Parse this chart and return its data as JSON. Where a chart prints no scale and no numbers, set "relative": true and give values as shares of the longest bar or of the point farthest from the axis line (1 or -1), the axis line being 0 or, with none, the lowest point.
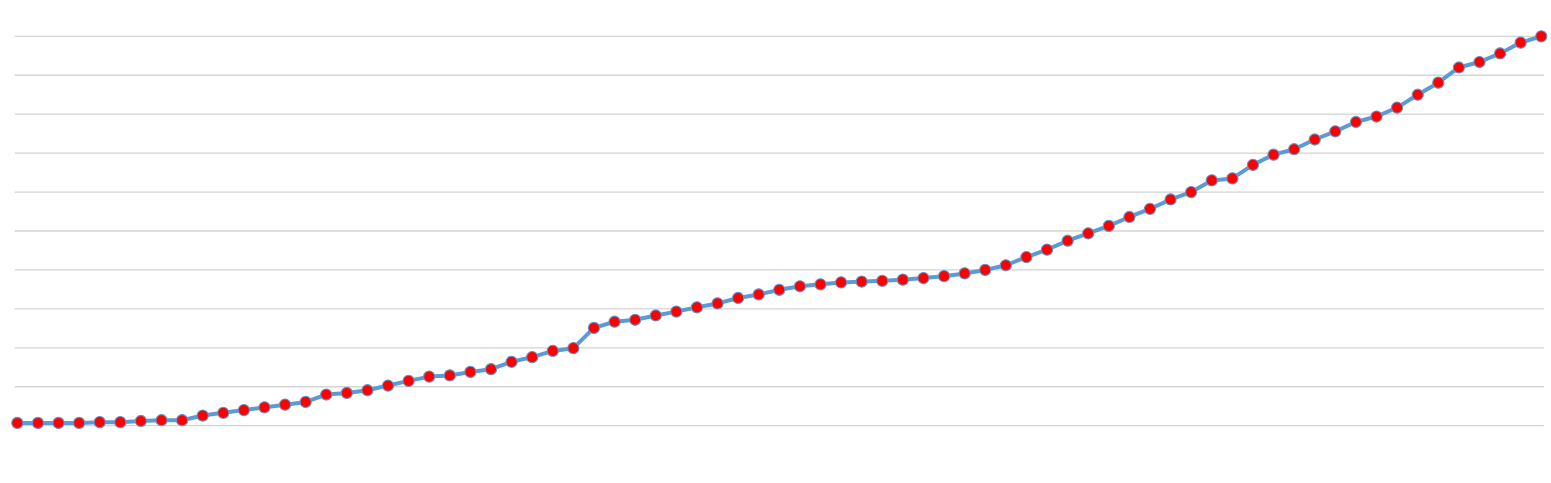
{
  "chart_data": {
    "type": "line",
    "relative": true,
    "grid": "y",
    "marker": "circle",
    "line_style": "solid",
    "categories": [
      null,
      null,
      null,
      null,
      null,
      null,
      null,
      null,
      null,
      null,
      null,
      null,
      null,
      null,
      null,
      null,
      null,
      null,
      null,
      null,
      null,
      null,
      null,
      null,
      null,
      null,
      null,
      null,
      null,
      null,
      null,
      null,
      null,
      null,
      null,
      null,
      null,
      null,
      null,
      null,
      null,
      null,
      null,
      null,
      null,
      null,
      null,
      null,
      null,
      null,
      null,
      null,
      null,
      null,
      null,
      null,
      null,
      null,
      null,
      null,
      null,
      null,
      null,
      null,
      null,
      null,
      null,
      null,
      null,
      null,
      null,
      null,
      null,
      null,
      null
    ],
    "series": [
      {
        "color": "#5b9bd5",
        "values": [
          0.007,
          0.007,
          0.007,
          0.007,
          0.009,
          0.009,
          0.012,
          0.014,
          0.014,
          0.026,
          0.033,
          0.04,
          0.047,
          0.054,
          0.061,
          0.08,
          0.084,
          0.091,
          0.103,
          0.115,
          0.126,
          0.129,
          0.138,
          0.145,
          0.164,
          0.176,
          0.192,
          0.199,
          0.251,
          0.267,
          0.272,
          0.283,
          0.293,
          0.304,
          0.314,
          0.328,
          0.337,
          0.349,
          0.358,
          0.363,
          0.368,
          0.37,
          0.372,
          0.375,
          0.379,
          0.384,
          0.391,
          0.4,
          0.412,
          0.433,
          0.452,
          0.475,
          0.494,
          0.513,
          0.536,
          0.557,
          0.581,
          0.6,
          0.63,
          0.635,
          0.67,
          0.696,
          0.71,
          0.735,
          0.756,
          0.78,
          0.794,
          0.817,
          0.85,
          0.881,
          0.92,
          0.934,
          0.956,
          0.984,
          1
        ]
      }
    ]
  }
}
